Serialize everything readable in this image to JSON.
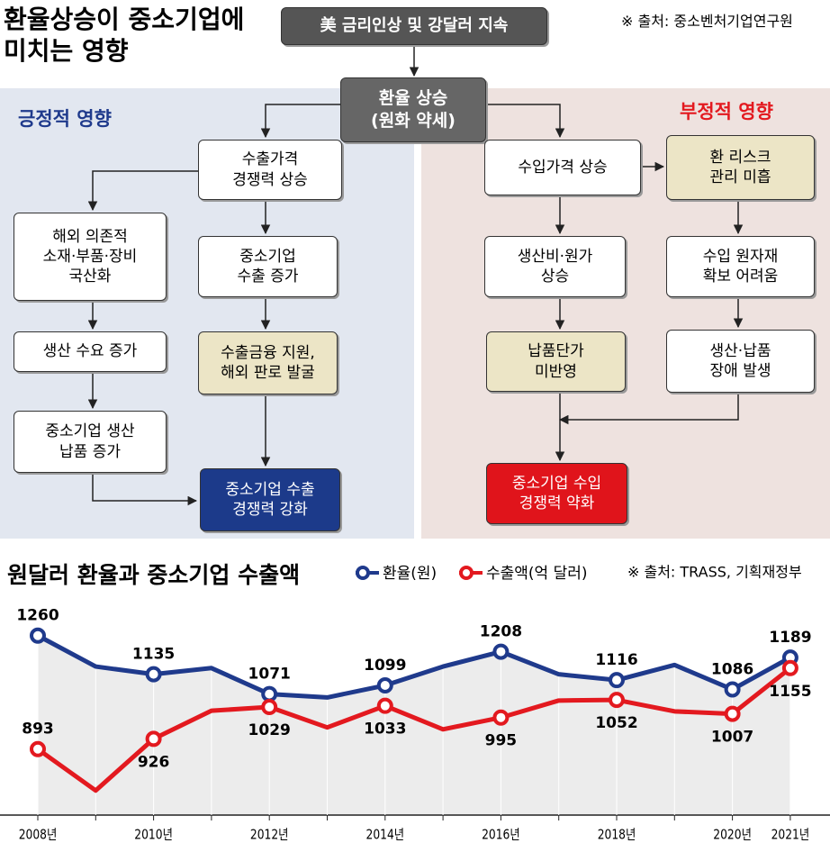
{
  "diagram": {
    "title": "환율상승이 중소기업에\n미치는 영향",
    "source": "※ 출처: 중소벤처기업연구원",
    "top_box": "美 금리인상 및 강달러 지속",
    "center_box": "환율 상승\n(원화 약세)",
    "positive": {
      "label": "긍정적 영향",
      "boxes": [
        "수출가격\n경쟁력 상승",
        "해외 의존적\n소재·부품·장비\n국산화",
        "중소기업\n수출 증가",
        "생산 수요 증가",
        "수출금융 지원,\n해외 판로 발굴",
        "중소기업 생산\n납품 증가",
        "중소기업 수출\n경쟁력 강화"
      ]
    },
    "negative": {
      "label": "부정적 영향",
      "boxes": [
        "수입가격 상승",
        "환 리스크\n관리 미흡",
        "생산비·원가\n상승",
        "수입 원자재\n확보 어려움",
        "납품단가\n미반영",
        "생산·납품\n장애 발생",
        "중소기업 수입\n경쟁력 약화"
      ]
    }
  },
  "chart_data": {
    "type": "line",
    "title": "원달러 환율과 중소기업 수출액",
    "source": "※ 출처: TRASS, 기획재정부",
    "categories": [
      "2008년",
      null,
      "2010년",
      null,
      "2012년",
      null,
      "2014년",
      null,
      "2016년",
      null,
      "2018년",
      null,
      "2020년",
      "2021년"
    ],
    "series": [
      {
        "name": "환율(원)",
        "color": "#1f3a8c",
        "values": [
          1260,
          1160,
          1135,
          1155,
          1071,
          1060,
          1099,
          1160,
          1208,
          1135,
          1116,
          1165,
          1086,
          1189
        ]
      },
      {
        "name": "수출액(억 달러)",
        "color": "#e3191f",
        "values": [
          893,
          759,
          926,
          1017,
          1029,
          963,
          1033,
          957,
          995,
          1050,
          1052,
          1015,
          1007,
          1155
        ]
      }
    ],
    "ylim": [
      700,
      1300
    ]
  }
}
